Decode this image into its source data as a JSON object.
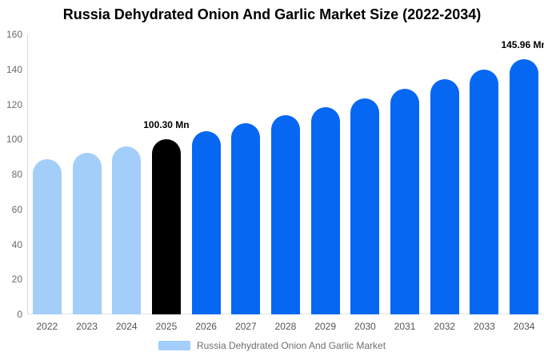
{
  "title": "Russia Dehydrated Onion And Garlic Market Size (2022-2034)",
  "legend": {
    "label": "Russia Dehydrated Onion And Garlic Market",
    "swatch_color": "#a3cefa"
  },
  "colors": {
    "past_bar": "#a3cefa",
    "base_year_bar": "#000000",
    "forecast_bar": "#0667f2",
    "axis_line": "#d9d9d9",
    "baseline": "#e4e4e4",
    "y_tick_text": "#6b6b6b",
    "x_tick_text": "#555555",
    "annotation_text": "#000000"
  },
  "chart_data": {
    "type": "bar",
    "title": "Russia Dehydrated Onion And Garlic Market Size (2022-2034)",
    "xlabel": "",
    "ylabel": "",
    "unit": "Mn",
    "categories": [
      "2022",
      "2023",
      "2024",
      "2025",
      "2026",
      "2027",
      "2028",
      "2029",
      "2030",
      "2031",
      "2032",
      "2033",
      "2034"
    ],
    "values": [
      88.47,
      92.24,
      96.17,
      100.3,
      104.57,
      109.03,
      113.68,
      118.52,
      123.57,
      128.83,
      134.32,
      140.05,
      145.96
    ],
    "bar_colors": [
      "#a3cefa",
      "#a3cefa",
      "#a3cefa",
      "#000000",
      "#0667f2",
      "#0667f2",
      "#0667f2",
      "#0667f2",
      "#0667f2",
      "#0667f2",
      "#0667f2",
      "#0667f2",
      "#0667f2"
    ],
    "annotations": [
      {
        "category": "2025",
        "text": "100.30 Mn"
      },
      {
        "category": "2034",
        "text": "145.96 Mn"
      }
    ],
    "ylim": [
      0,
      160
    ],
    "yticks": [
      0,
      20,
      40,
      60,
      80,
      100,
      120,
      140,
      160
    ],
    "grid": false,
    "legend_position": "bottom",
    "legend_entries": [
      "Russia Dehydrated Onion And Garlic Market"
    ]
  }
}
